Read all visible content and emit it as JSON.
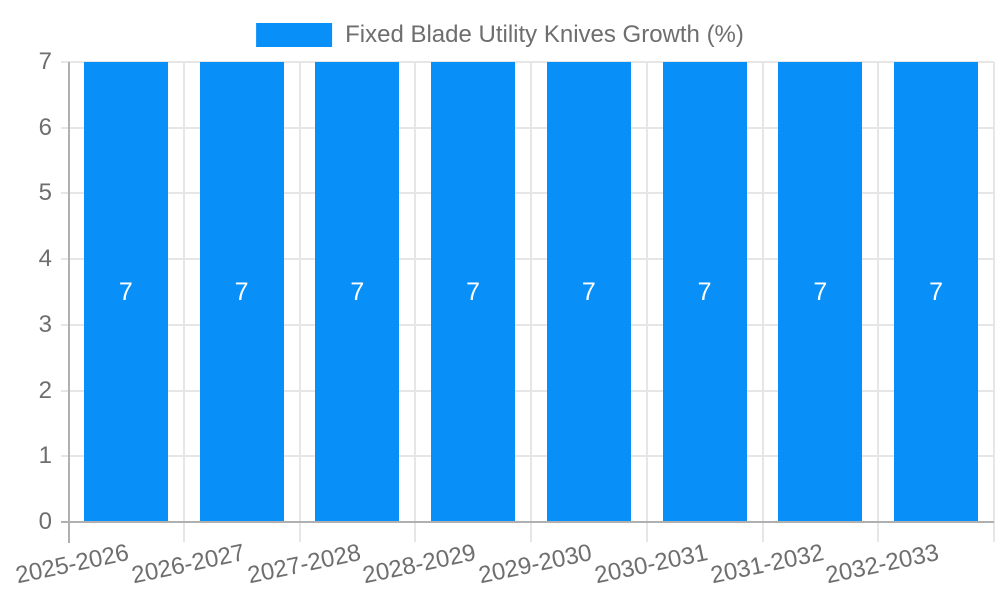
{
  "chart_data": {
    "type": "bar",
    "title": "",
    "legend_label": "Fixed Blade Utility Knives Growth (%)",
    "legend_position": "top",
    "categories": [
      "2025-2026",
      "2026-2027",
      "2027-2028",
      "2028-2029",
      "2029-2030",
      "2030-2031",
      "2031-2032",
      "2032-2033"
    ],
    "series": [
      {
        "name": "Fixed Blade Utility Knives Growth (%)",
        "values": [
          7,
          7,
          7,
          7,
          7,
          7,
          7,
          7
        ]
      }
    ],
    "bar_labels": [
      "7",
      "7",
      "7",
      "7",
      "7",
      "7",
      "7",
      "7"
    ],
    "xlabel": "",
    "ylabel": "",
    "ylim": [
      0,
      7
    ],
    "yticks": [
      0,
      1,
      2,
      3,
      4,
      5,
      6,
      7
    ],
    "grid": true,
    "x_label_rotation_deg": -12,
    "colors": {
      "bar": "#0990f8",
      "grid_line": "#e6e6e6",
      "axis_line": "#b0b0b0",
      "label_text": "#6e6e6e",
      "bar_label_text": "#ffffff",
      "background": "#ffffff"
    }
  }
}
